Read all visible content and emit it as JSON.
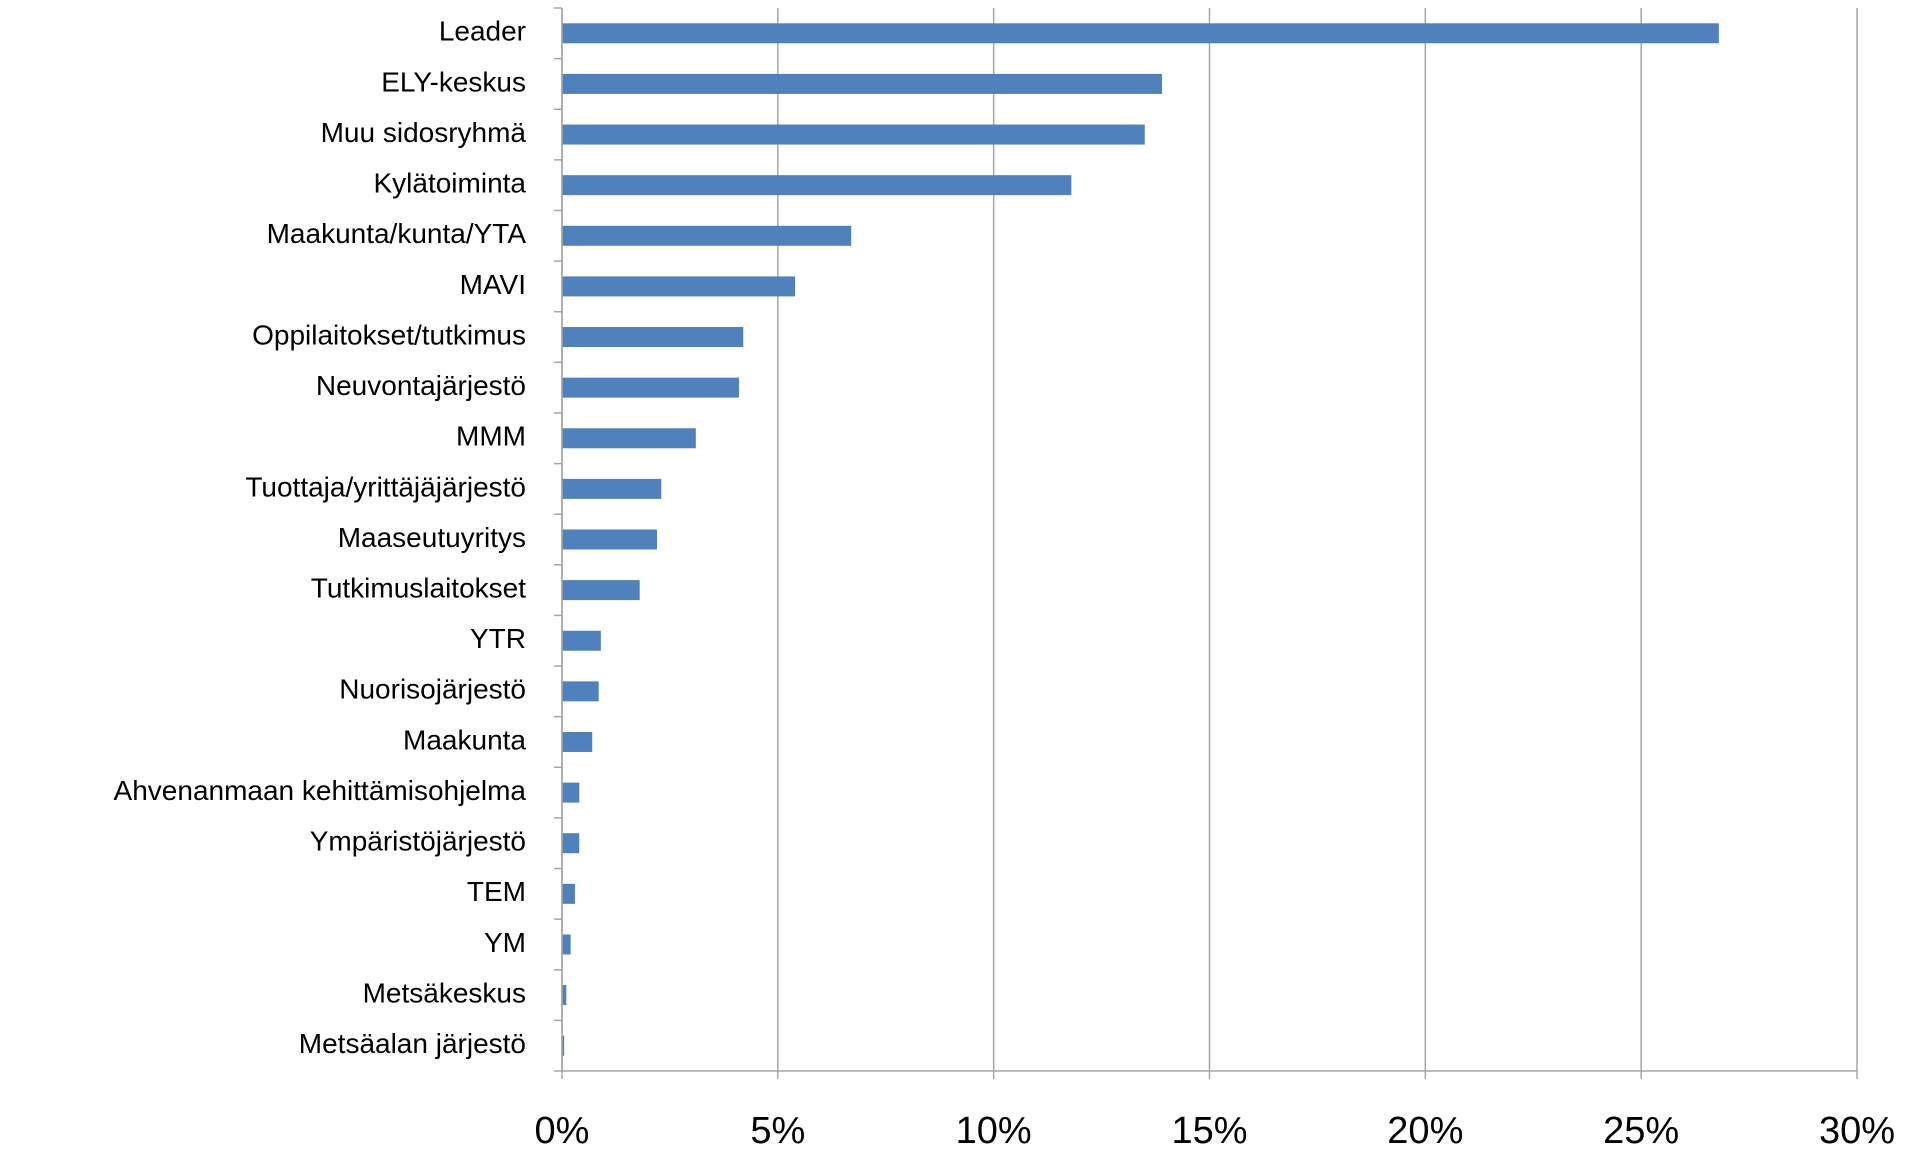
{
  "chart_data": {
    "type": "barh",
    "categories": [
      "Leader",
      "ELY-keskus",
      "Muu sidosryhmä",
      "Kylätoiminta",
      "Maakunta/kunta/YTA",
      "MAVI",
      "Oppilaitokset/tutkimus",
      "Neuvontajärjestö",
      "MMM",
      "Tuottaja/yrittäjäjärjestö",
      "Maaseutuyritys",
      "Tutkimuslaitokset",
      "YTR",
      "Nuorisojärjestö",
      "Maakunta",
      "Ahvenanmaan kehittämisohjelma",
      "Ympäristöjärjestö",
      "TEM",
      "YM",
      "Metsäkeskus",
      "Metsäalan järjestö"
    ],
    "values": [
      26.8,
      13.9,
      13.5,
      11.8,
      6.7,
      5.4,
      4.2,
      4.1,
      3.1,
      2.3,
      2.2,
      1.8,
      0.9,
      0.85,
      0.7,
      0.4,
      0.4,
      0.3,
      0.2,
      0.1,
      0.05
    ],
    "color": "#4f81bd",
    "xlim": [
      0,
      30
    ],
    "xticks": [
      {
        "value": 0,
        "label": "0%"
      },
      {
        "value": 5,
        "label": "5%"
      },
      {
        "value": 10,
        "label": "10%"
      },
      {
        "value": 15,
        "label": "15%"
      },
      {
        "value": 20,
        "label": "20%"
      },
      {
        "value": 25,
        "label": "25%"
      },
      {
        "value": 30,
        "label": "30%"
      }
    ],
    "grid": true
  }
}
